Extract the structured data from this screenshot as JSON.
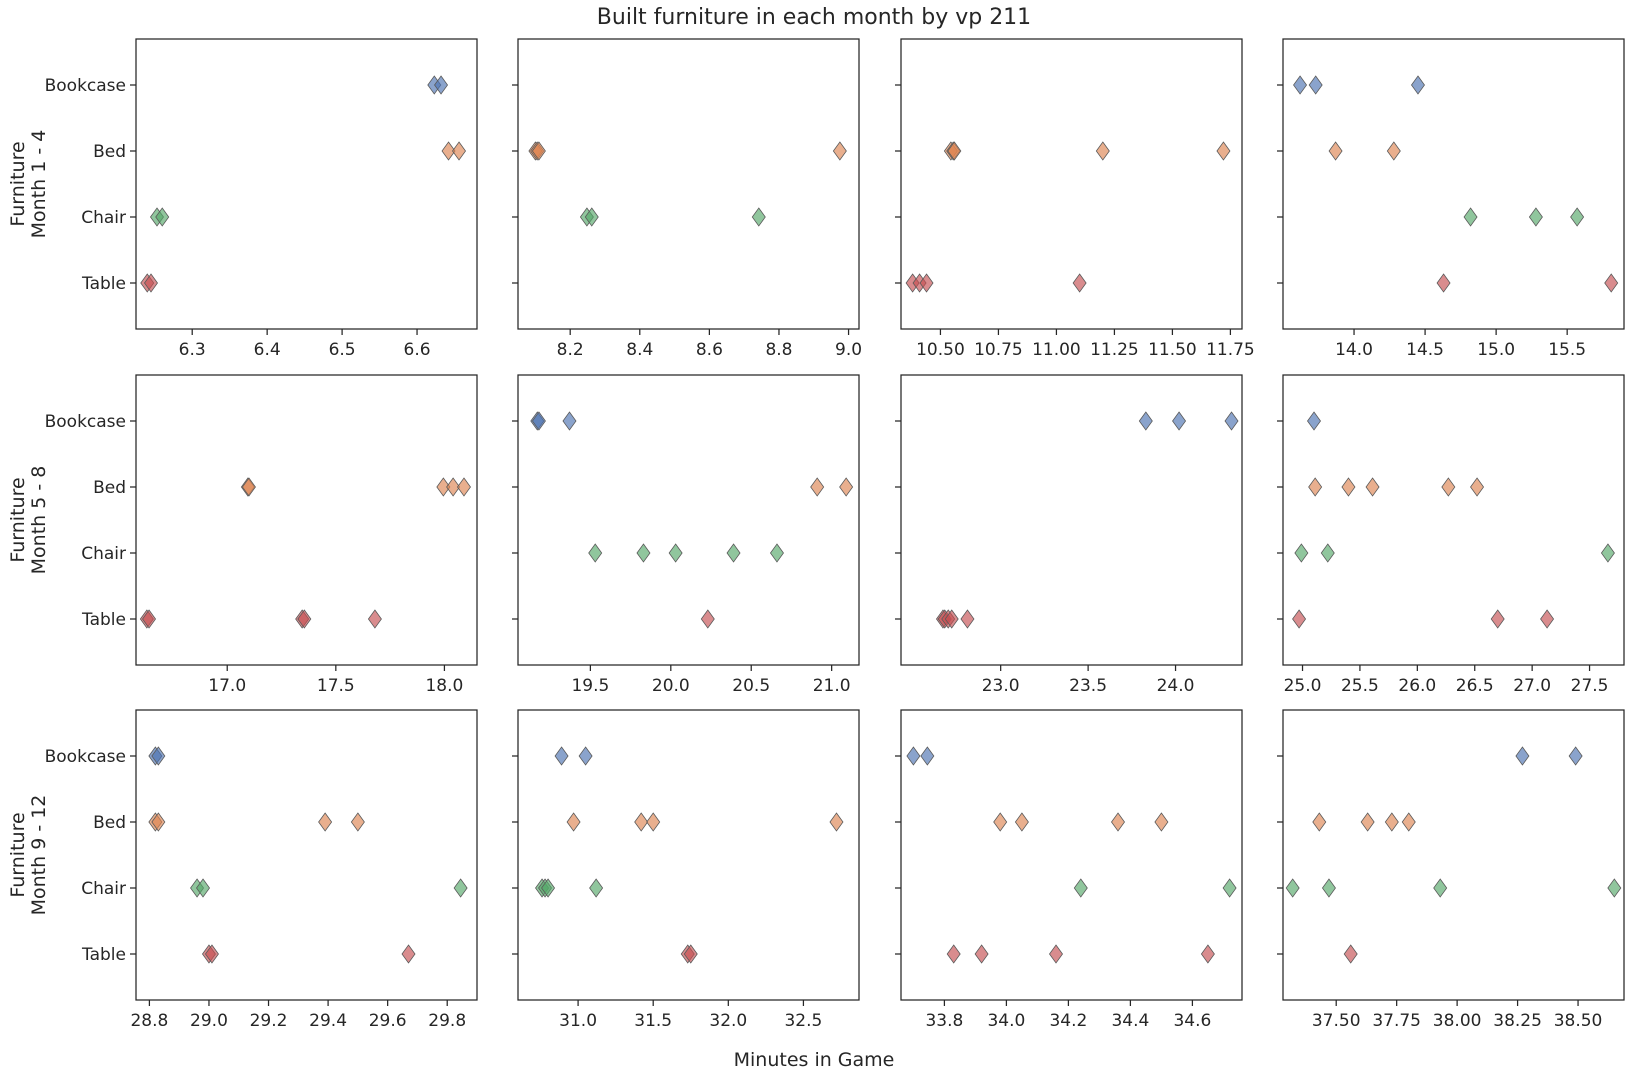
{
  "chart_data": {
    "type": "scatter",
    "title": "Built furniture in each month by vp 211",
    "xlabel": "Minutes in Game",
    "categories": [
      "Bookcase",
      "Bed",
      "Chair",
      "Table"
    ],
    "colors": {
      "Bookcase": "#4c72b0",
      "Bed": "#dd8452",
      "Chair": "#55a868",
      "Table": "#c44e52"
    },
    "marker": "diamond",
    "row_labels": [
      "Furniture\nMonth 1 - 4",
      "Furniture\nMonth 5 - 8",
      "Furniture\nMonth 9 - 12"
    ],
    "panels": [
      {
        "xlim": [
          6.225,
          6.68
        ],
        "xticks": [
          6.3,
          6.4,
          6.5,
          6.6
        ],
        "xtick_labels": [
          "6.3",
          "6.4",
          "6.5",
          "6.6"
        ],
        "points": {
          "Bookcase": [
            6.623,
            6.632
          ],
          "Bed": [
            6.642,
            6.656
          ],
          "Chair": [
            6.253,
            6.26
          ],
          "Table": [
            6.24,
            6.245
          ]
        }
      },
      {
        "xlim": [
          8.05,
          9.03
        ],
        "xticks": [
          8.2,
          8.4,
          8.6,
          8.8,
          9.0
        ],
        "xtick_labels": [
          "8.2",
          "8.4",
          "8.6",
          "8.8",
          "9.0"
        ],
        "points": {
          "Bookcase": [],
          "Bed": [
            8.1,
            8.105,
            8.11,
            8.975
          ],
          "Chair": [
            8.248,
            8.262,
            8.742
          ],
          "Table": []
        }
      },
      {
        "xlim": [
          10.33,
          11.8
        ],
        "xticks": [
          10.5,
          10.75,
          11.0,
          11.25,
          11.5,
          11.75
        ],
        "xtick_labels": [
          "10.50",
          "10.75",
          "11.00",
          "11.25",
          "11.50",
          "11.75"
        ],
        "points": {
          "Bookcase": [],
          "Bed": [
            10.545,
            10.555,
            10.56,
            11.2,
            11.72
          ],
          "Chair": [],
          "Table": [
            10.38,
            10.41,
            10.44,
            11.1
          ]
        }
      },
      {
        "xlim": [
          13.5,
          15.9
        ],
        "xticks": [
          14.0,
          14.5,
          15.0,
          15.5
        ],
        "xtick_labels": [
          "14.0",
          "14.5",
          "15.0",
          "15.5"
        ],
        "points": {
          "Bookcase": [
            13.62,
            13.73,
            14.45
          ],
          "Bed": [
            13.87,
            14.28
          ],
          "Chair": [
            14.82,
            15.28,
            15.57
          ],
          "Table": [
            14.63,
            15.81
          ]
        }
      },
      {
        "xlim": [
          16.58,
          18.15
        ],
        "xticks": [
          17.0,
          17.5,
          18.0
        ],
        "xtick_labels": [
          "17.0",
          "17.5",
          "18.0"
        ],
        "points": {
          "Bookcase": [],
          "Bed": [
            17.095,
            17.1,
            17.995,
            18.04,
            18.09
          ],
          "Chair": [],
          "Table": [
            16.63,
            16.64,
            17.345,
            17.355,
            17.68
          ]
        }
      },
      {
        "xlim": [
          19.05,
          21.17
        ],
        "xticks": [
          19.5,
          20.0,
          20.5,
          21.0
        ],
        "xtick_labels": [
          "19.5",
          "20.0",
          "20.5",
          "21.0"
        ],
        "points": {
          "Bookcase": [
            19.17,
            19.18,
            19.37
          ],
          "Bed": [
            20.91,
            21.09
          ],
          "Chair": [
            19.53,
            19.83,
            20.03,
            20.39,
            20.66
          ],
          "Table": [
            20.23
          ]
        }
      },
      {
        "xlim": [
          22.43,
          24.38
        ],
        "xticks": [
          23.0,
          23.5,
          24.0
        ],
        "xtick_labels": [
          "23.0",
          "23.5",
          "24.0"
        ],
        "points": {
          "Bookcase": [
            23.83,
            24.02,
            24.32
          ],
          "Bed": [],
          "Chair": [],
          "Table": [
            22.67,
            22.68,
            22.7,
            22.72,
            22.81
          ]
        }
      },
      {
        "xlim": [
          24.83,
          27.8
        ],
        "xticks": [
          25.0,
          25.5,
          26.0,
          26.5,
          27.0,
          27.5
        ],
        "xtick_labels": [
          "25.0",
          "25.5",
          "26.0",
          "26.5",
          "27.0",
          "27.5"
        ],
        "points": {
          "Bookcase": [
            25.1
          ],
          "Bed": [
            25.11,
            25.4,
            25.61,
            26.27,
            26.52
          ],
          "Chair": [
            24.99,
            25.22,
            27.66
          ],
          "Table": [
            24.97,
            26.7,
            27.13
          ]
        }
      },
      {
        "xlim": [
          28.755,
          29.9
        ],
        "xticks": [
          28.8,
          29.0,
          29.2,
          29.4,
          29.6,
          29.8
        ],
        "xtick_labels": [
          "28.8",
          "29.0",
          "29.2",
          "29.4",
          "29.6",
          "29.8"
        ],
        "points": {
          "Bookcase": [
            28.82,
            28.83
          ],
          "Bed": [
            28.82,
            28.83,
            29.39,
            29.5
          ],
          "Chair": [
            28.96,
            28.98,
            29.845
          ],
          "Table": [
            29.0,
            29.01,
            29.67
          ]
        }
      },
      {
        "xlim": [
          30.6,
          32.87
        ],
        "xticks": [
          31.0,
          31.5,
          32.0,
          32.5
        ],
        "xtick_labels": [
          "31.0",
          "31.5",
          "32.0",
          "32.5"
        ],
        "points": {
          "Bookcase": [
            30.89,
            31.05
          ],
          "Bed": [
            30.97,
            31.42,
            31.5,
            32.72
          ],
          "Chair": [
            30.76,
            30.78,
            30.8,
            31.12
          ],
          "Table": [
            31.73,
            31.75
          ]
        }
      },
      {
        "xlim": [
          33.66,
          34.76
        ],
        "xticks": [
          33.8,
          34.0,
          34.2,
          34.4,
          34.6
        ],
        "xtick_labels": [
          "33.8",
          "34.0",
          "34.2",
          "34.4",
          "34.6"
        ],
        "points": {
          "Bookcase": [
            33.7,
            33.745
          ],
          "Bed": [
            33.98,
            34.05,
            34.36,
            34.5
          ],
          "Chair": [
            34.24,
            34.72
          ],
          "Table": [
            33.83,
            33.92,
            34.16,
            34.65
          ]
        }
      },
      {
        "xlim": [
          37.28,
          38.69
        ],
        "xticks": [
          37.5,
          37.75,
          38.0,
          38.25,
          38.5
        ],
        "xtick_labels": [
          "37.50",
          "37.75",
          "38.00",
          "38.25",
          "38.50"
        ],
        "points": {
          "Bookcase": [
            38.27,
            38.49
          ],
          "Bed": [
            37.43,
            37.63,
            37.73,
            37.8
          ],
          "Chair": [
            37.32,
            37.47,
            37.93,
            38.65
          ],
          "Table": [
            37.56
          ]
        }
      }
    ]
  }
}
